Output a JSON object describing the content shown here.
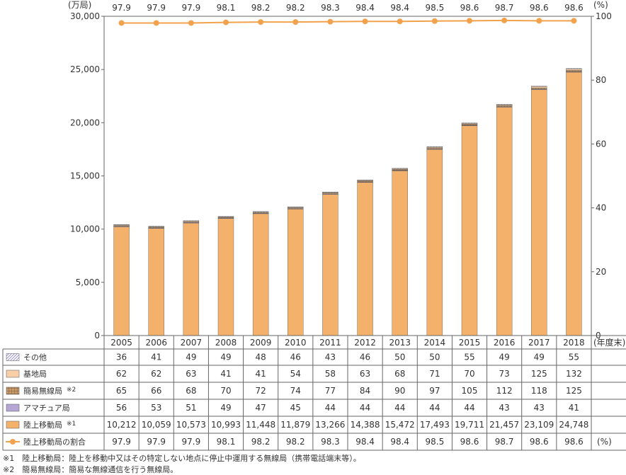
{
  "chart_data": {
    "type": "bar",
    "stacked": true,
    "categories": [
      "2005",
      "2006",
      "2007",
      "2008",
      "2009",
      "2010",
      "2011",
      "2012",
      "2013",
      "2014",
      "2015",
      "2016",
      "2017",
      "2018"
    ],
    "y_unit_left": "(万局)",
    "y_unit_right": "(%)",
    "x_unit": "(年度末)",
    "ylim_left": [
      0,
      30000
    ],
    "ylim_right": [
      0,
      100
    ],
    "yticks_left": [
      "0",
      "5,000",
      "10,000",
      "15,000",
      "20,000",
      "25,000",
      "30,000"
    ],
    "yticks_right": [
      "0",
      "20",
      "40",
      "60",
      "80",
      "100"
    ],
    "series": [
      {
        "name": "陸上移動局",
        "note": "※1",
        "color": "#f4b16b",
        "values": [
          10212,
          10059,
          10573,
          10993,
          11448,
          11879,
          13266,
          14388,
          15472,
          17493,
          19711,
          21457,
          23109,
          24748
        ],
        "labels": [
          "10,212",
          "10,059",
          "10,573",
          "10,993",
          "11,448",
          "11,879",
          "13,266",
          "14,388",
          "15,472",
          "17,493",
          "19,711",
          "21,457",
          "23,109",
          "24,748"
        ]
      },
      {
        "name": "アマチュア局",
        "note": "",
        "color": "#b5a6d3",
        "values": [
          56,
          53,
          51,
          49,
          47,
          45,
          44,
          44,
          44,
          44,
          44,
          43,
          43,
          41
        ],
        "labels": [
          "56",
          "53",
          "51",
          "49",
          "47",
          "45",
          "44",
          "44",
          "44",
          "44",
          "44",
          "43",
          "43",
          "41"
        ]
      },
      {
        "name": "簡易無線局",
        "note": "※2",
        "color": "#a0764e",
        "values": [
          65,
          66,
          68,
          70,
          72,
          74,
          77,
          84,
          90,
          97,
          105,
          112,
          118,
          125
        ],
        "labels": [
          "65",
          "66",
          "68",
          "70",
          "72",
          "74",
          "77",
          "84",
          "90",
          "97",
          "105",
          "112",
          "118",
          "125"
        ]
      },
      {
        "name": "基地局",
        "note": "",
        "color": "#f8cfa6",
        "values": [
          62,
          62,
          63,
          41,
          41,
          54,
          58,
          63,
          68,
          71,
          70,
          73,
          125,
          132
        ],
        "labels": [
          "62",
          "62",
          "63",
          "41",
          "41",
          "54",
          "58",
          "63",
          "68",
          "71",
          "70",
          "73",
          "125",
          "132"
        ]
      },
      {
        "name": "その他",
        "note": "",
        "color": "#c9c2e6",
        "values": [
          36,
          41,
          49,
          49,
          48,
          46,
          43,
          46,
          50,
          50,
          55,
          49,
          49,
          55
        ],
        "labels": [
          "36",
          "41",
          "49",
          "49",
          "48",
          "46",
          "43",
          "46",
          "50",
          "50",
          "55",
          "49",
          "49",
          "55"
        ]
      }
    ],
    "line": {
      "name": "陸上移動局の割合",
      "color": "#f2a24c",
      "values": [
        97.9,
        97.9,
        97.9,
        98.1,
        98.2,
        98.2,
        98.3,
        98.4,
        98.4,
        98.5,
        98.6,
        98.7,
        98.6,
        98.6
      ],
      "labels": [
        "97.9",
        "97.9",
        "97.9",
        "98.1",
        "98.2",
        "98.2",
        "98.3",
        "98.4",
        "98.4",
        "98.5",
        "98.6",
        "98.7",
        "98.6",
        "98.6"
      ],
      "unit": "(%)"
    },
    "table_row_order": [
      "その他",
      "基地局",
      "簡易無線局",
      "アマチュア局",
      "陸上移動局",
      "陸上移動局の割合"
    ]
  },
  "footnotes": [
    "※1　陸上移動局：陸上を移動中又はその特定しない地点に停止中運用する無線局（携帯電話端末等）。",
    "※2　簡易無線局：簡易な無線通信を行う無線局。"
  ]
}
